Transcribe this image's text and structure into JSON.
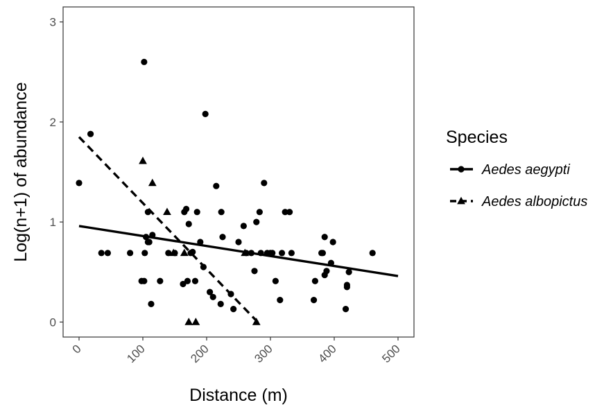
{
  "chart_data": {
    "type": "scatter",
    "xlabel": "Distance (m)",
    "ylabel": "Log(n+1) of abundance",
    "xlim": [
      -25,
      525
    ],
    "ylim": [
      -0.15,
      3.15
    ],
    "x_ticks": [
      0,
      100,
      200,
      300,
      400,
      500
    ],
    "y_ticks": [
      0,
      1,
      2,
      3
    ],
    "x_tick_labels": [
      "0",
      "100",
      "200",
      "300",
      "400",
      "500"
    ],
    "y_tick_labels": [
      "0",
      "1",
      "2",
      "3"
    ],
    "grid": false,
    "legend_position": "right",
    "legend_title": "Species",
    "series": [
      {
        "name": "Aedes aegypti",
        "marker": "circle",
        "line_style": "solid",
        "fit_line": {
          "x": [
            0,
            500
          ],
          "y": [
            0.96,
            0.46
          ]
        },
        "points": [
          [
            0,
            1.39
          ],
          [
            18,
            1.88
          ],
          [
            35,
            0.69
          ],
          [
            45,
            0.69
          ],
          [
            80,
            0.69
          ],
          [
            98,
            0.41
          ],
          [
            102,
            0.41
          ],
          [
            102,
            2.6
          ],
          [
            103,
            0.69
          ],
          [
            105,
            0.85
          ],
          [
            108,
            0.8
          ],
          [
            108,
            1.1
          ],
          [
            110,
            0.8
          ],
          [
            113,
            0.18
          ],
          [
            115,
            0.87
          ],
          [
            127,
            0.41
          ],
          [
            140,
            0.69
          ],
          [
            150,
            0.69
          ],
          [
            163,
            0.38
          ],
          [
            165,
            1.1
          ],
          [
            168,
            1.13
          ],
          [
            170,
            0.41
          ],
          [
            172,
            0.98
          ],
          [
            175,
            0.69
          ],
          [
            178,
            0.7
          ],
          [
            182,
            0.41
          ],
          [
            185,
            1.1
          ],
          [
            190,
            0.8
          ],
          [
            195,
            0.55
          ],
          [
            198,
            2.08
          ],
          [
            205,
            0.3
          ],
          [
            210,
            0.25
          ],
          [
            215,
            1.36
          ],
          [
            222,
            0.18
          ],
          [
            223,
            1.1
          ],
          [
            225,
            0.85
          ],
          [
            238,
            0.28
          ],
          [
            242,
            0.13
          ],
          [
            250,
            0.8
          ],
          [
            258,
            0.96
          ],
          [
            262,
            0.69
          ],
          [
            270,
            0.69
          ],
          [
            275,
            0.51
          ],
          [
            278,
            1.0
          ],
          [
            283,
            1.1
          ],
          [
            285,
            0.69
          ],
          [
            290,
            1.39
          ],
          [
            295,
            0.69
          ],
          [
            300,
            0.69
          ],
          [
            303,
            0.69
          ],
          [
            308,
            0.41
          ],
          [
            315,
            0.22
          ],
          [
            318,
            0.69
          ],
          [
            323,
            1.1
          ],
          [
            330,
            1.1
          ],
          [
            333,
            0.69
          ],
          [
            368,
            0.22
          ],
          [
            370,
            0.41
          ],
          [
            380,
            0.69
          ],
          [
            382,
            0.69
          ],
          [
            385,
            0.47
          ],
          [
            385,
            0.85
          ],
          [
            388,
            0.51
          ],
          [
            395,
            0.59
          ],
          [
            398,
            0.8
          ],
          [
            418,
            0.13
          ],
          [
            420,
            0.35
          ],
          [
            420,
            0.37
          ],
          [
            423,
            0.5
          ],
          [
            460,
            0.69
          ]
        ]
      },
      {
        "name": "Aedes albopictus",
        "marker": "triangle",
        "line_style": "dashed",
        "fit_line": {
          "x": [
            0,
            280
          ],
          "y": [
            1.85,
            0.0
          ]
        },
        "points": [
          [
            100,
            1.61
          ],
          [
            115,
            1.39
          ],
          [
            138,
            1.1
          ],
          [
            148,
            0.69
          ],
          [
            165,
            0.69
          ],
          [
            172,
            0.0
          ],
          [
            183,
            0.0
          ],
          [
            260,
            0.69
          ],
          [
            278,
            0.0
          ]
        ]
      }
    ]
  }
}
